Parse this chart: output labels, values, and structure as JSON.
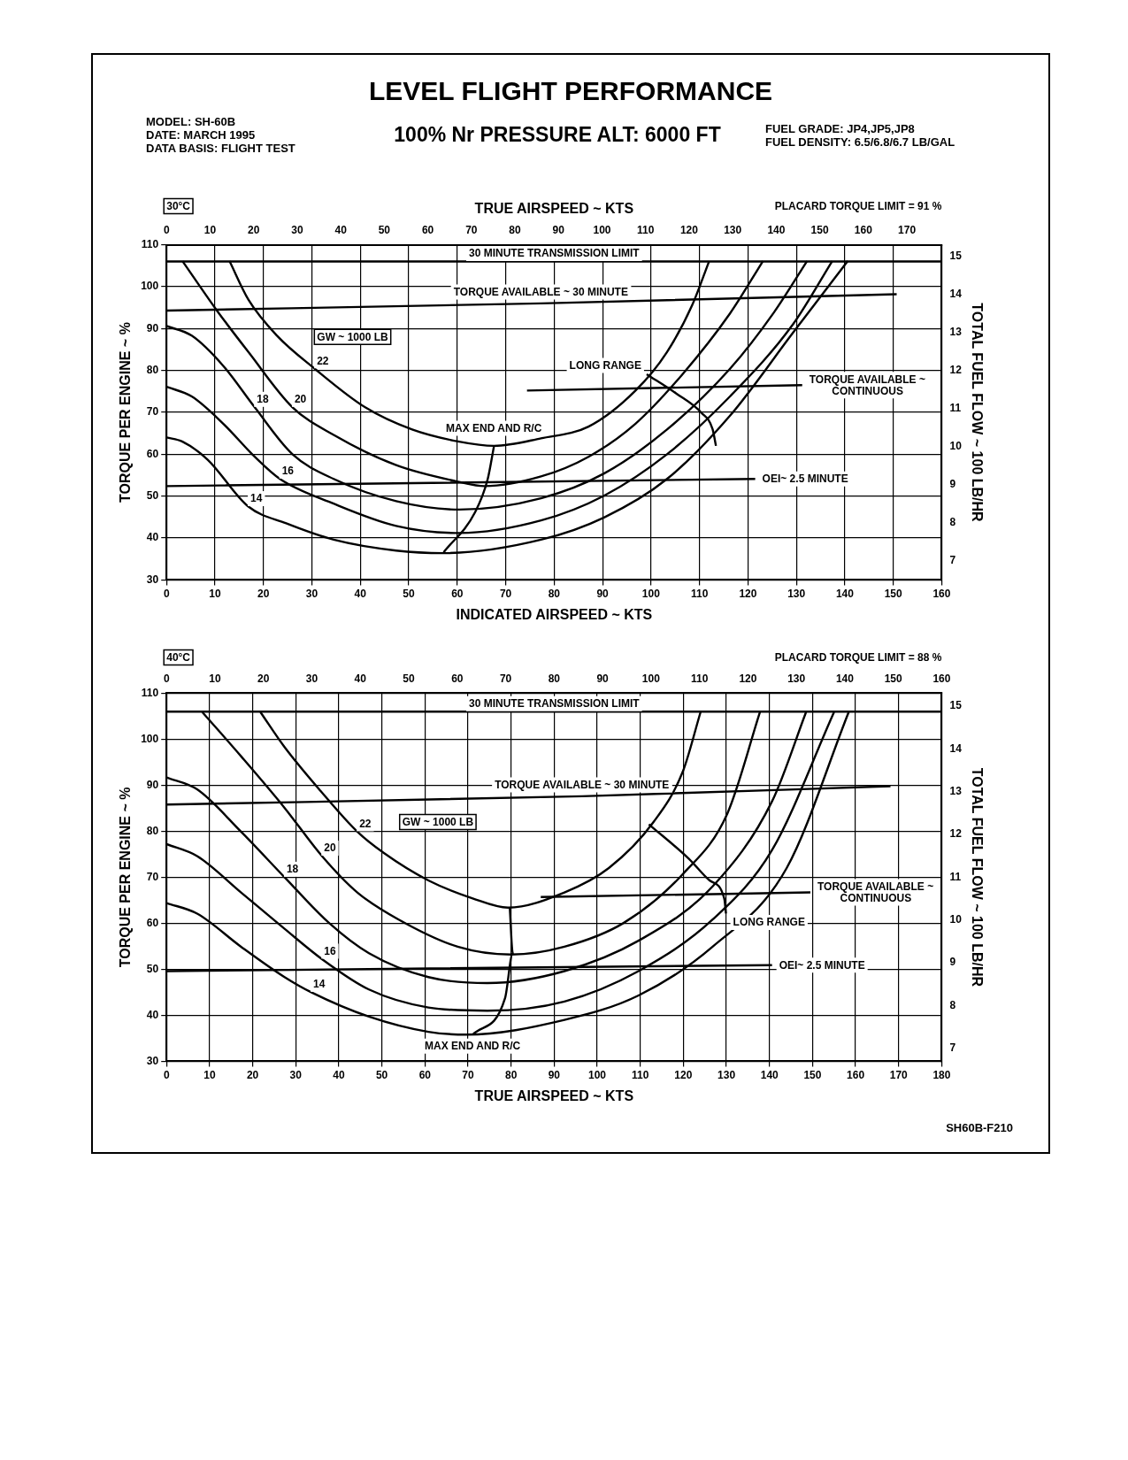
{
  "chart_data": [
    {
      "type": "line",
      "title": "LEVEL FLIGHT PERFORMANCE",
      "subtitle": "100% Nr   PRESSURE ALT: 6000 FT",
      "annotations": [
        "MODEL: SH-60B",
        "DATE: MARCH 1995",
        "DATA BASIS: FLIGHT TEST",
        "FUEL GRADE: JP4,JP5,JP8",
        "FUEL DENSITY: 6.5/6.8/6.7 LB/GAL",
        "30°C",
        "PLACARD TORQUE LIMIT = 91 %",
        "GW ~ 1000 LB"
      ],
      "xlabel": "INDICATED AIRSPEED ~ KTS",
      "x2label": "TRUE AIRSPEED ~ KTS",
      "ylabel": "TORQUE PER ENGINE ~ %",
      "y2label": "TOTAL FUEL FLOW ~ 100 LB/HR",
      "xlim": [
        0,
        160
      ],
      "xticks": [
        0,
        10,
        20,
        30,
        40,
        50,
        60,
        70,
        80,
        90,
        100,
        110,
        120,
        130,
        140,
        150,
        160
      ],
      "x2lim": [
        0,
        178
      ],
      "x2ticks": [
        0,
        10,
        20,
        30,
        40,
        50,
        60,
        70,
        80,
        90,
        100,
        110,
        120,
        130,
        140,
        150,
        160,
        170
      ],
      "ylim": [
        30,
        110
      ],
      "yticks": [
        30,
        40,
        50,
        60,
        70,
        80,
        90,
        100,
        110
      ],
      "y2lim": [
        6.5,
        15.3
      ],
      "y2ticks": [
        7,
        8,
        9,
        10,
        11,
        12,
        13,
        14,
        15
      ],
      "grid": true,
      "marker": "none",
      "line_style": "solid",
      "series": [
        {
          "name": "22",
          "color": "#000000",
          "x": [
            13.0,
            16.9,
            22.8,
            30.6,
            41.0,
            50.7,
            60.4,
            67.6,
            77.3,
            87.1,
            96.8,
            103.3,
            108.5,
            112.0
          ],
          "values": [
            106.1,
            96.9,
            88.3,
            80.4,
            71.2,
            65.9,
            63.0,
            62.0,
            63.8,
            66.6,
            75.2,
            84.4,
            95.6,
            106.1
          ]
        },
        {
          "name": "20",
          "color": "#000000",
          "x": [
            3.3,
            10.4,
            16.9,
            26.0,
            34.5,
            47.4,
            60.4,
            65.6,
            77.3,
            87.1,
            96.8,
            106.5,
            116.3,
            123.1
          ],
          "values": [
            106.1,
            94.3,
            84.4,
            71.2,
            64.6,
            57.4,
            53.4,
            52.4,
            54.7,
            59.4,
            67.3,
            79.1,
            93.6,
            106.1
          ]
        },
        {
          "name": "18",
          "color": "#000000",
          "x": [
            0,
            5.2,
            11.7,
            18.2,
            26.0,
            34.5,
            47.4,
            60.4,
            77.3,
            90.3,
            103.3,
            116.3,
            125.4,
            132.2
          ],
          "values": [
            90.6,
            88.3,
            81.1,
            71.2,
            60.0,
            54.1,
            48.8,
            46.8,
            49.5,
            55.4,
            65.9,
            80.4,
            93.9,
            106.1
          ]
        },
        {
          "name": "16",
          "color": "#000000",
          "x": [
            0,
            5.2,
            11.7,
            18.2,
            23.4,
            34.5,
            47.4,
            60.4,
            77.3,
            90.3,
            103.3,
            116.3,
            129.3,
            137.4
          ],
          "values": [
            76.1,
            73.8,
            67.3,
            59.4,
            54.1,
            48.2,
            42.9,
            41.2,
            44.2,
            50.1,
            60.0,
            73.8,
            91.0,
            106.1
          ]
        },
        {
          "name": "14",
          "color": "#000000",
          "x": [
            0,
            3.3,
            8.5,
            16.9,
            24.7,
            34.5,
            47.4,
            57.2,
            77.3,
            90.3,
            103.3,
            116.3,
            129.3,
            140.6
          ],
          "values": [
            64.0,
            63.0,
            58.7,
            47.5,
            43.5,
            39.6,
            37.0,
            36.4,
            39.6,
            44.9,
            54.1,
            69.2,
            89.0,
            106.1
          ]
        },
        {
          "name": "MAX END AND R/C",
          "color": "#000000",
          "x": [
            57.2,
            63.7,
            66.3,
            67.6
          ],
          "values": [
            36.6,
            46.2,
            54.1,
            62.0
          ]
        },
        {
          "name": "LONG RANGE",
          "color": "#000000",
          "x": [
            99.1,
            105.2,
            110.4,
            112.7,
            113.4
          ],
          "values": [
            79.1,
            74.5,
            69.9,
            66.0,
            62.0
          ]
        },
        {
          "name": "TORQUE AVAILABLE ~ 30 MINUTE",
          "color": "#000000",
          "x": [
            0,
            77.3,
            150.7
          ],
          "values": [
            94.3,
            96.0,
            98.2
          ]
        },
        {
          "name": "TORQUE AVAILABLE ~ CONTINUOUS",
          "color": "#000000",
          "x": [
            74.4,
            131.2
          ],
          "values": [
            75.2,
            76.5
          ]
        },
        {
          "name": "OEI~ 2.5 MINUTE",
          "color": "#000000",
          "x": [
            0,
            121.5
          ],
          "values": [
            52.4,
            54.1
          ]
        }
      ],
      "ref_lines": [
        {
          "axis": "y",
          "value": 106,
          "label": "30 MINUTE TRANSMISSION LIMIT",
          "color": "#000000"
        }
      ]
    },
    {
      "type": "line",
      "annotations": [
        "40°C",
        "PLACARD TORQUE LIMIT = 88 %",
        "GW ~ 1000 LB",
        "SH60B-F210"
      ],
      "xlabel": "TRUE AIRSPEED ~ KTS",
      "ylabel": "TORQUE PER ENGINE ~ %",
      "y2label": "TOTAL FUEL FLOW ~ 100 LB/HR",
      "xlim": [
        0,
        180
      ],
      "xticks": [
        0,
        10,
        20,
        30,
        40,
        50,
        60,
        70,
        80,
        90,
        100,
        110,
        120,
        130,
        140,
        150,
        160,
        170,
        180
      ],
      "x2lim": [
        0,
        160
      ],
      "x2ticks": [
        0,
        10,
        20,
        30,
        40,
        50,
        60,
        70,
        80,
        90,
        100,
        110,
        120,
        130,
        140,
        150,
        160
      ],
      "ylim": [
        30,
        110
      ],
      "yticks": [
        30,
        40,
        50,
        60,
        70,
        80,
        90,
        100,
        110
      ],
      "y2lim": [
        6.7,
        15.3
      ],
      "y2ticks": [
        7,
        8,
        9,
        10,
        11,
        12,
        13,
        14,
        15
      ],
      "grid": true,
      "marker": "none",
      "line_style": "solid",
      "series": [
        {
          "name": "22",
          "color": "#000000",
          "x": [
            21.8,
            27.4,
            36.1,
            44.3,
            50.4,
            60.8,
            71.1,
            79.3,
            92.4,
            102.7,
            113.0,
            119.9,
            124.0
          ],
          "values": [
            105.9,
            98.3,
            88.4,
            79.9,
            75.3,
            69.3,
            65.4,
            63.4,
            66.7,
            72.0,
            81.9,
            93.0,
            105.9
          ]
        },
        {
          "name": "20",
          "color": "#000000",
          "x": [
            8.3,
            17.3,
            27.4,
            36.1,
            44.3,
            53.9,
            67.6,
            80.0,
            92.4,
            106.2,
            119.9,
            130.2,
            137.8
          ],
          "values": [
            105.9,
            96.3,
            85.1,
            74.6,
            66.7,
            60.8,
            54.9,
            53.2,
            54.9,
            60.1,
            70.7,
            83.8,
            105.9
          ]
        },
        {
          "name": "18",
          "color": "#000000",
          "x": [
            0,
            7.1,
            17.3,
            27.4,
            37.7,
            47.0,
            60.8,
            74.5,
            92.4,
            109.6,
            126.8,
            140.6,
            148.5
          ],
          "values": [
            91.7,
            89.1,
            79.9,
            70.0,
            60.1,
            53.5,
            48.3,
            47.0,
            49.6,
            56.2,
            68.0,
            86.5,
            105.9
          ]
        },
        {
          "name": "16",
          "color": "#000000",
          "x": [
            0,
            7.1,
            17.3,
            27.4,
            36.1,
            47.0,
            60.8,
            74.5,
            92.4,
            109.6,
            126.8,
            140.6,
            155.0
          ],
          "values": [
            77.2,
            74.6,
            66.7,
            58.8,
            52.2,
            45.6,
            41.7,
            41.0,
            43.0,
            49.6,
            60.8,
            75.9,
            105.9
          ]
        },
        {
          "name": "14",
          "color": "#000000",
          "x": [
            0,
            7.1,
            17.3,
            27.4,
            33.6,
            47.0,
            60.8,
            69.7,
            92.4,
            109.6,
            126.8,
            144.0,
            158.4
          ],
          "values": [
            64.4,
            62.1,
            54.9,
            48.3,
            45.0,
            39.7,
            36.4,
            35.8,
            39.0,
            44.3,
            54.9,
            72.0,
            105.9
          ]
        },
        {
          "name": "MAX END AND R/C",
          "color": "#000000",
          "x": [
            71.1,
            78.6,
            80.4,
            79.7
          ],
          "values": [
            35.8,
            43.7,
            53.5,
            63.4
          ]
        },
        {
          "name": "LONG RANGE",
          "color": "#000000",
          "x": [
            112.0,
            121.3,
            126.1,
            129.5,
            129.9
          ],
          "values": [
            81.5,
            74.0,
            69.3,
            65.4,
            62.1
          ]
        },
        {
          "name": "TORQUE AVAILABLE ~ 30 MINUTE",
          "color": "#000000",
          "x": [
            0,
            96.5,
            168.1
          ],
          "values": [
            85.8,
            87.6,
            89.8
          ]
        },
        {
          "name": "TORQUE AVAILABLE ~ CONTINUOUS",
          "color": "#000000",
          "x": [
            86.9,
            149.5
          ],
          "values": [
            65.7,
            66.7
          ]
        },
        {
          "name": "OEI~ 2.5 MINUTE",
          "color": "#000000",
          "x": [
            0,
            140.6
          ],
          "values": [
            49.6,
            50.9
          ]
        }
      ],
      "ref_lines": [
        {
          "axis": "y",
          "value": 106,
          "label": "30 MINUTE TRANSMISSION LIMIT",
          "color": "#000000"
        }
      ]
    }
  ]
}
